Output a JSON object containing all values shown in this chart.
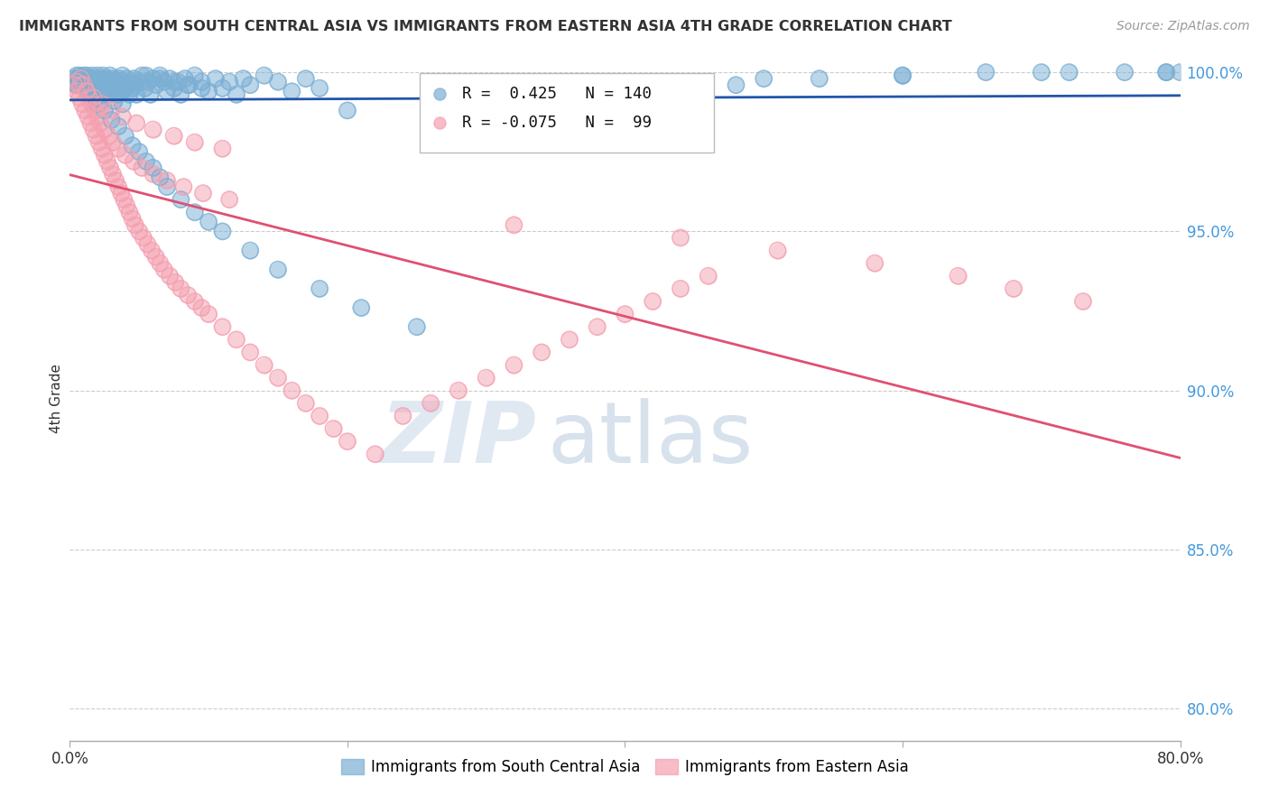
{
  "title": "IMMIGRANTS FROM SOUTH CENTRAL ASIA VS IMMIGRANTS FROM EASTERN ASIA 4TH GRADE CORRELATION CHART",
  "source_text": "Source: ZipAtlas.com",
  "ylabel": "4th Grade",
  "xlim": [
    0.0,
    0.8
  ],
  "ylim": [
    0.79,
    1.005
  ],
  "x_tick_positions": [
    0.0,
    0.2,
    0.4,
    0.6,
    0.8
  ],
  "x_tick_labels": [
    "0.0%",
    "",
    "",
    "",
    "80.0%"
  ],
  "y_tick_positions_right": [
    0.8,
    0.85,
    0.9,
    0.95,
    1.0
  ],
  "y_tick_labels_right": [
    "80.0%",
    "85.0%",
    "90.0%",
    "95.0%",
    "100.0%"
  ],
  "legend_blue_label": "Immigrants from South Central Asia",
  "legend_pink_label": "Immigrants from Eastern Asia",
  "r_blue": 0.425,
  "n_blue": 140,
  "r_pink": -0.075,
  "n_pink": 99,
  "blue_color": "#7bafd4",
  "pink_color": "#f4a0b0",
  "blue_line_color": "#2255aa",
  "pink_line_color": "#e05070",
  "watermark_zip": "ZIP",
  "watermark_atlas": "atlas",
  "blue_scatter_x": [
    0.003,
    0.004,
    0.005,
    0.005,
    0.006,
    0.007,
    0.007,
    0.008,
    0.008,
    0.009,
    0.01,
    0.01,
    0.011,
    0.011,
    0.012,
    0.012,
    0.013,
    0.013,
    0.014,
    0.014,
    0.015,
    0.015,
    0.016,
    0.016,
    0.017,
    0.017,
    0.018,
    0.018,
    0.019,
    0.019,
    0.02,
    0.021,
    0.022,
    0.023,
    0.024,
    0.025,
    0.025,
    0.026,
    0.027,
    0.028,
    0.029,
    0.03,
    0.031,
    0.032,
    0.033,
    0.034,
    0.035,
    0.036,
    0.037,
    0.038,
    0.039,
    0.04,
    0.041,
    0.042,
    0.043,
    0.044,
    0.045,
    0.046,
    0.047,
    0.048,
    0.05,
    0.052,
    0.054,
    0.056,
    0.058,
    0.06,
    0.062,
    0.065,
    0.068,
    0.07,
    0.072,
    0.075,
    0.078,
    0.08,
    0.083,
    0.086,
    0.09,
    0.095,
    0.1,
    0.105,
    0.11,
    0.115,
    0.12,
    0.125,
    0.13,
    0.14,
    0.15,
    0.16,
    0.17,
    0.18,
    0.02,
    0.025,
    0.03,
    0.035,
    0.04,
    0.045,
    0.05,
    0.055,
    0.06,
    0.065,
    0.07,
    0.08,
    0.09,
    0.1,
    0.11,
    0.13,
    0.15,
    0.18,
    0.21,
    0.25,
    0.01,
    0.012,
    0.015,
    0.018,
    0.022,
    0.027,
    0.032,
    0.038,
    0.2,
    0.28,
    0.35,
    0.42,
    0.48,
    0.54,
    0.6,
    0.66,
    0.72,
    0.76,
    0.79,
    0.8,
    0.055,
    0.065,
    0.075,
    0.085,
    0.095,
    0.4,
    0.5,
    0.6,
    0.7,
    0.79
  ],
  "blue_scatter_y": [
    0.998,
    0.997,
    0.999,
    0.996,
    0.998,
    0.997,
    0.999,
    0.996,
    0.998,
    0.997,
    0.999,
    0.996,
    0.998,
    0.997,
    0.999,
    0.995,
    0.998,
    0.996,
    0.997,
    0.994,
    0.998,
    0.996,
    0.999,
    0.995,
    0.997,
    0.993,
    0.998,
    0.995,
    0.997,
    0.992,
    0.999,
    0.997,
    0.998,
    0.996,
    0.999,
    0.997,
    0.995,
    0.998,
    0.996,
    0.994,
    0.999,
    0.997,
    0.998,
    0.995,
    0.997,
    0.993,
    0.998,
    0.996,
    0.994,
    0.999,
    0.997,
    0.995,
    0.998,
    0.996,
    0.993,
    0.997,
    0.995,
    0.998,
    0.996,
    0.993,
    0.997,
    0.999,
    0.995,
    0.997,
    0.993,
    0.998,
    0.996,
    0.999,
    0.997,
    0.994,
    0.998,
    0.995,
    0.997,
    0.993,
    0.998,
    0.996,
    0.999,
    0.997,
    0.994,
    0.998,
    0.995,
    0.997,
    0.993,
    0.998,
    0.996,
    0.999,
    0.997,
    0.994,
    0.998,
    0.995,
    0.99,
    0.988,
    0.985,
    0.983,
    0.98,
    0.977,
    0.975,
    0.972,
    0.97,
    0.967,
    0.964,
    0.96,
    0.956,
    0.953,
    0.95,
    0.944,
    0.938,
    0.932,
    0.926,
    0.92,
    0.998,
    0.997,
    0.996,
    0.995,
    0.994,
    0.993,
    0.991,
    0.99,
    0.988,
    0.99,
    0.992,
    0.994,
    0.996,
    0.998,
    0.999,
    1.0,
    1.0,
    1.0,
    1.0,
    1.0,
    0.999,
    0.998,
    0.997,
    0.996,
    0.995,
    0.997,
    0.998,
    0.999,
    1.0,
    1.0
  ],
  "pink_scatter_x": [
    0.003,
    0.005,
    0.007,
    0.009,
    0.011,
    0.013,
    0.015,
    0.017,
    0.019,
    0.021,
    0.023,
    0.025,
    0.027,
    0.029,
    0.031,
    0.033,
    0.035,
    0.037,
    0.039,
    0.041,
    0.043,
    0.045,
    0.047,
    0.05,
    0.053,
    0.056,
    0.059,
    0.062,
    0.065,
    0.068,
    0.072,
    0.076,
    0.08,
    0.085,
    0.09,
    0.095,
    0.1,
    0.11,
    0.12,
    0.13,
    0.14,
    0.15,
    0.16,
    0.17,
    0.18,
    0.19,
    0.2,
    0.22,
    0.24,
    0.26,
    0.28,
    0.3,
    0.32,
    0.34,
    0.36,
    0.38,
    0.4,
    0.42,
    0.44,
    0.46,
    0.008,
    0.01,
    0.012,
    0.014,
    0.016,
    0.018,
    0.02,
    0.022,
    0.025,
    0.028,
    0.031,
    0.035,
    0.04,
    0.046,
    0.052,
    0.06,
    0.07,
    0.082,
    0.096,
    0.115,
    0.005,
    0.008,
    0.012,
    0.017,
    0.023,
    0.03,
    0.038,
    0.048,
    0.06,
    0.075,
    0.09,
    0.11,
    0.32,
    0.44,
    0.51,
    0.58,
    0.64,
    0.68,
    0.73
  ],
  "pink_scatter_y": [
    0.996,
    0.994,
    0.992,
    0.99,
    0.988,
    0.986,
    0.984,
    0.982,
    0.98,
    0.978,
    0.976,
    0.974,
    0.972,
    0.97,
    0.968,
    0.966,
    0.964,
    0.962,
    0.96,
    0.958,
    0.956,
    0.954,
    0.952,
    0.95,
    0.948,
    0.946,
    0.944,
    0.942,
    0.94,
    0.938,
    0.936,
    0.934,
    0.932,
    0.93,
    0.928,
    0.926,
    0.924,
    0.92,
    0.916,
    0.912,
    0.908,
    0.904,
    0.9,
    0.896,
    0.892,
    0.888,
    0.884,
    0.88,
    0.892,
    0.896,
    0.9,
    0.904,
    0.908,
    0.912,
    0.916,
    0.92,
    0.924,
    0.928,
    0.932,
    0.936,
    0.998,
    0.996,
    0.994,
    0.992,
    0.99,
    0.988,
    0.986,
    0.984,
    0.982,
    0.98,
    0.978,
    0.976,
    0.974,
    0.972,
    0.97,
    0.968,
    0.966,
    0.964,
    0.962,
    0.96,
    0.997,
    0.996,
    0.994,
    0.992,
    0.99,
    0.988,
    0.986,
    0.984,
    0.982,
    0.98,
    0.978,
    0.976,
    0.952,
    0.948,
    0.944,
    0.94,
    0.936,
    0.932,
    0.928
  ]
}
